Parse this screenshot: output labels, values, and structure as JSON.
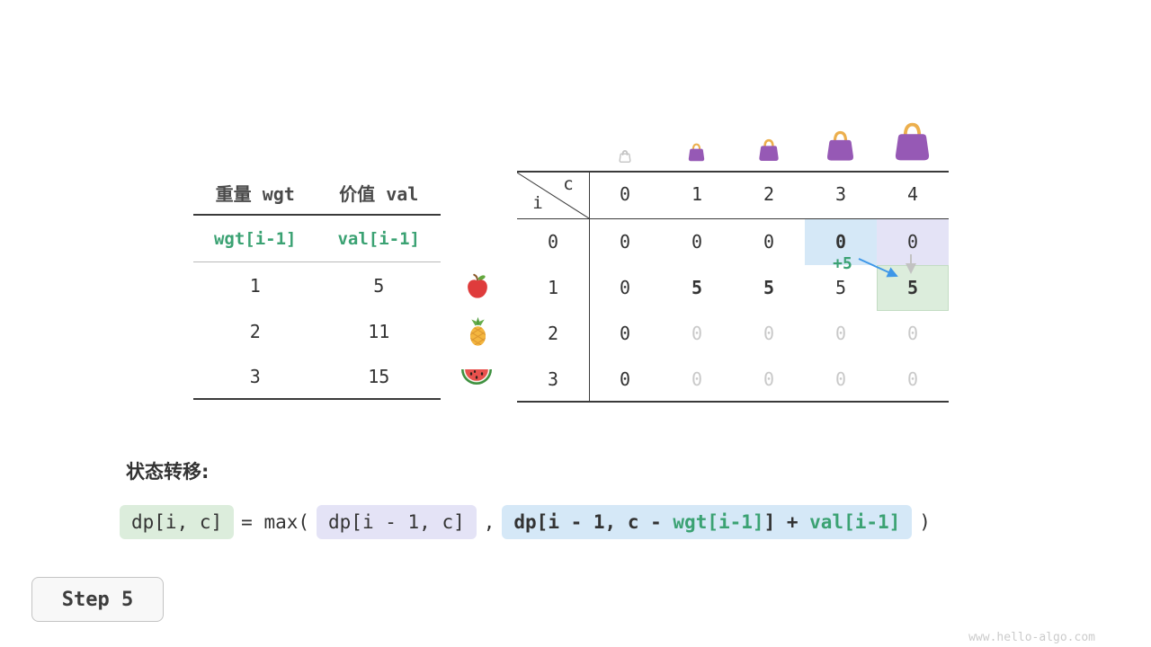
{
  "colors": {
    "green_text": "#3BA273",
    "dim_text": "#C9C9C9",
    "green_bg": "#DCEDDC",
    "lavender_bg": "#E4E3F6",
    "blue_bg": "#D5E8F7",
    "bag_purple": "#9659B5",
    "bag_gold": "#ECAF4D",
    "arrow_blue": "#3E97E8",
    "arrow_gray": "#C2C2C2"
  },
  "left_table": {
    "col_headers": [
      "重量 wgt",
      "价值 val"
    ],
    "formula_row": [
      "wgt[i-1]",
      "val[i-1]"
    ],
    "rows": [
      {
        "wgt": "1",
        "val": "5"
      },
      {
        "wgt": "2",
        "val": "11"
      },
      {
        "wgt": "3",
        "val": "15"
      }
    ]
  },
  "icons": {
    "capacity_bags": [
      "bag-empty-icon",
      "bag-small-icon",
      "bag-medium-icon",
      "bag-large-icon",
      "bag-xlarge-icon"
    ],
    "item_fruits": [
      "apple-icon",
      "pineapple-icon",
      "watermelon-icon"
    ],
    "arrows": [
      "take-item-arrow-blue-icon",
      "skip-item-arrow-gray-icon"
    ]
  },
  "dp_table": {
    "corner": {
      "top_right": "c",
      "bottom_left": "i"
    },
    "col_headers": [
      "0",
      "1",
      "2",
      "3",
      "4"
    ],
    "rows": [
      {
        "label": "0",
        "cells": [
          {
            "v": "0"
          },
          {
            "v": "0"
          },
          {
            "v": "0"
          },
          {
            "v": "0",
            "bold": true,
            "bg": "blue"
          },
          {
            "v": "0",
            "bg": "lavender"
          }
        ]
      },
      {
        "label": "1",
        "cells": [
          {
            "v": "0"
          },
          {
            "v": "5",
            "bold": true
          },
          {
            "v": "5",
            "bold": true
          },
          {
            "v": "5"
          },
          {
            "v": "5",
            "bold": true,
            "bg": "green"
          }
        ]
      },
      {
        "label": "2",
        "cells": [
          {
            "v": "0"
          },
          {
            "v": "0",
            "dim": true
          },
          {
            "v": "0",
            "dim": true
          },
          {
            "v": "0",
            "dim": true
          },
          {
            "v": "0",
            "dim": true
          }
        ]
      },
      {
        "label": "3",
        "cells": [
          {
            "v": "0"
          },
          {
            "v": "0",
            "dim": true
          },
          {
            "v": "0",
            "dim": true
          },
          {
            "v": "0",
            "dim": true
          },
          {
            "v": "0",
            "dim": true
          }
        ]
      }
    ],
    "annotation": "+5"
  },
  "formula": {
    "section_label": "状态转移:",
    "lhs": "dp[i, c]",
    "equals": "= max(",
    "arg1": "dp[i - 1, c]",
    "separator": ",",
    "arg2_parts": [
      {
        "text": "dp[i - 1, c - ",
        "color": "dark"
      },
      {
        "text": "wgt[i-1]",
        "color": "green"
      },
      {
        "text": "] + ",
        "color": "dark"
      },
      {
        "text": "val[i-1]",
        "color": "green"
      }
    ],
    "close_paren": ")"
  },
  "step_badge": "Step 5",
  "watermark": "www.hello-algo.com"
}
